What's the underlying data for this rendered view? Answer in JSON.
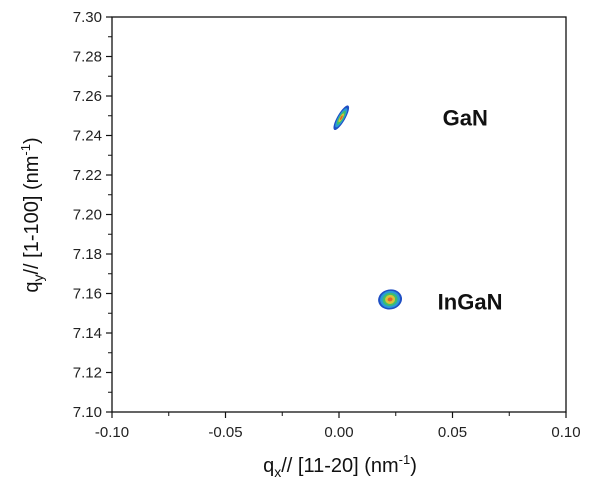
{
  "chart_data": {
    "type": "heatmap",
    "xlabel": {
      "base": "q",
      "sub": "x",
      "mid": "// [11-20] (nm",
      "sup": "-1",
      "end": ")"
    },
    "ylabel": {
      "base": "q",
      "sub": "y",
      "mid": "// [1-100] (nm",
      "sup": "-1",
      "end": ")"
    },
    "xlim": [
      -0.1,
      0.1
    ],
    "ylim": [
      7.1,
      7.3
    ],
    "x_ticks": [
      -0.1,
      -0.05,
      0.0,
      0.05,
      0.1
    ],
    "x_tick_labels": [
      "-0.10",
      "-0.05",
      "0.00",
      "0.05",
      "0.10"
    ],
    "y_ticks": [
      7.1,
      7.12,
      7.14,
      7.16,
      7.18,
      7.2,
      7.22,
      7.24,
      7.26,
      7.28,
      7.3
    ],
    "y_tick_labels": [
      "7.10",
      "7.12",
      "7.14",
      "7.16",
      "7.18",
      "7.20",
      "7.22",
      "7.24",
      "7.26",
      "7.28",
      "7.30"
    ],
    "grid": false,
    "peaks": [
      {
        "label": "GaN",
        "qx": 0.001,
        "qy": 7.249
      },
      {
        "label": "InGaN",
        "qx": 0.0225,
        "qy": 7.157
      }
    ],
    "colors": {
      "outer": "#1f4fc4",
      "mid1": "#2a9ad6",
      "mid2": "#3fbf6a",
      "core": "#d9c23a",
      "center": "#e0602c"
    }
  }
}
